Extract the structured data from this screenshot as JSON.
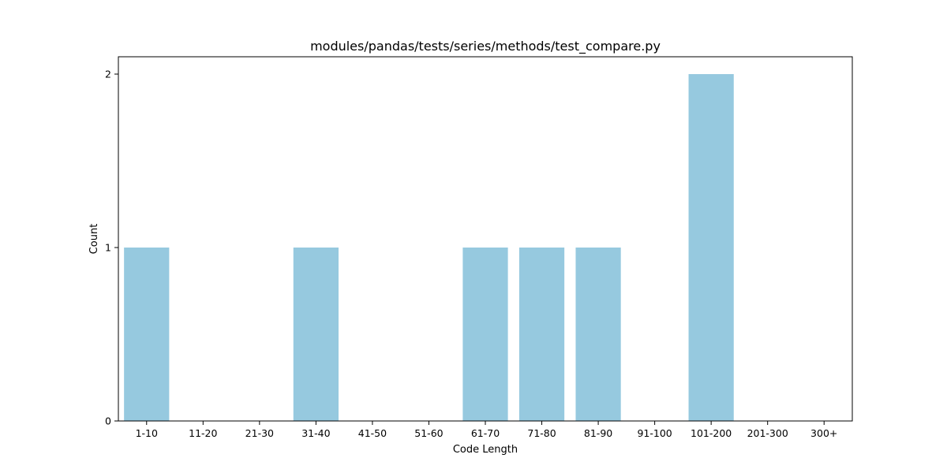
{
  "chart_data": {
    "type": "bar",
    "title": "modules/pandas/tests/series/methods/test_compare.py",
    "xlabel": "Code Length",
    "ylabel": "Count",
    "categories": [
      "1-10",
      "11-20",
      "21-30",
      "31-40",
      "41-50",
      "51-60",
      "61-70",
      "71-80",
      "81-90",
      "91-100",
      "101-200",
      "201-300",
      "300+"
    ],
    "values": [
      1,
      0,
      0,
      1,
      0,
      0,
      1,
      1,
      1,
      0,
      2,
      0,
      0
    ],
    "ylim": [
      0,
      2.1
    ],
    "yticks": [
      "0",
      "1",
      "2"
    ],
    "grid": false,
    "legend": "none",
    "bar_color": "#96C9DF"
  }
}
